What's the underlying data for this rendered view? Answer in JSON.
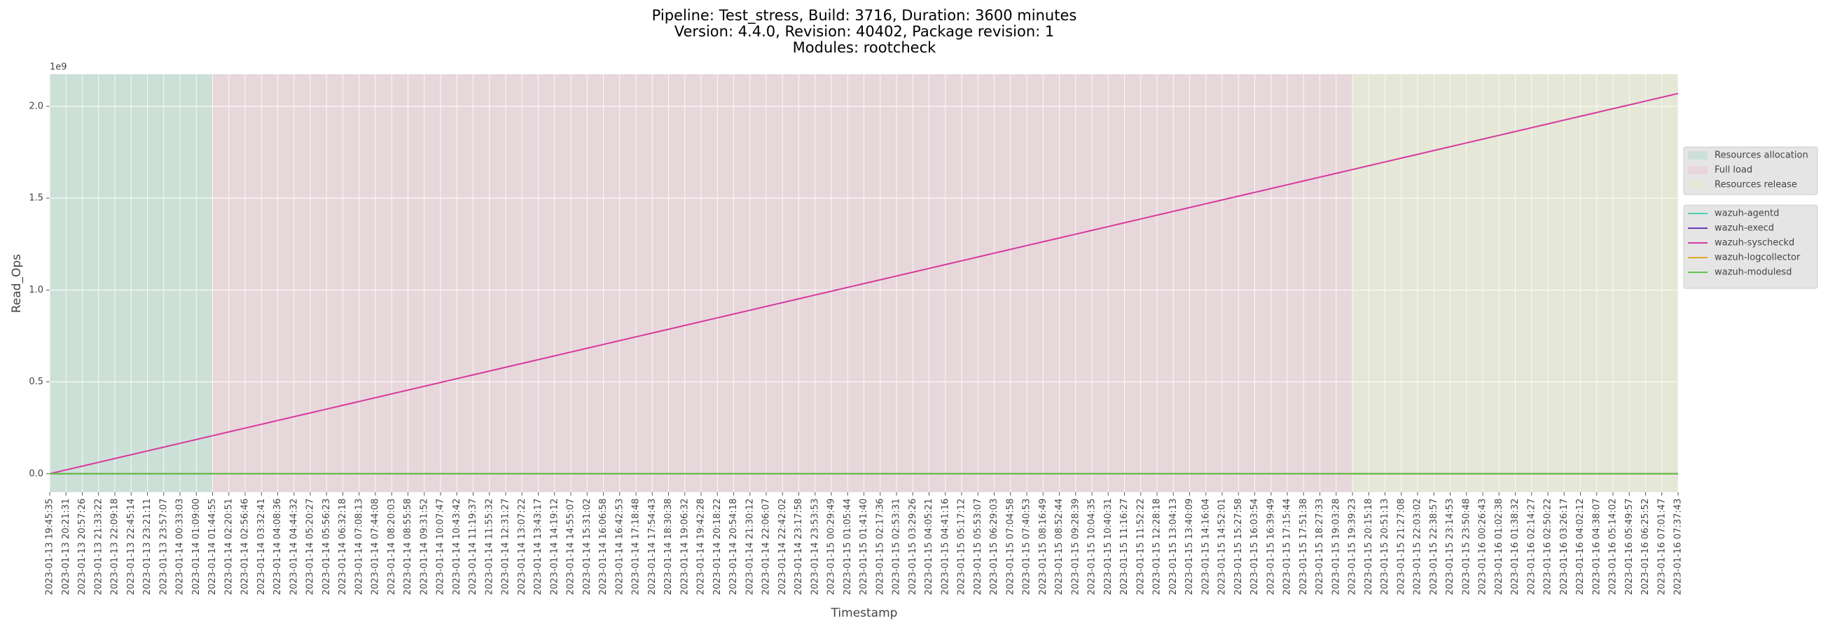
{
  "chart_data": {
    "type": "line",
    "title": [
      "Pipeline: Test_stress, Build: 3716, Duration: 3600 minutes",
      "Version: 4.4.0, Revision: 40402, Package revision: 1",
      "Modules: rootcheck"
    ],
    "x_label": "Timestamp",
    "y_label": "Read_Ops",
    "y_offset_label": "1e9",
    "categories": [
      "2023-01-13 19:45:35",
      "2023-01-13 20:21:31",
      "2023-01-13 20:57:26",
      "2023-01-13 21:33:22",
      "2023-01-13 22:09:18",
      "2023-01-13 22:45:14",
      "2023-01-13 23:21:11",
      "2023-01-13 23:57:07",
      "2023-01-14 00:33:03",
      "2023-01-14 01:09:00",
      "2023-01-14 01:44:55",
      "2023-01-14 02:20:51",
      "2023-01-14 02:56:46",
      "2023-01-14 03:32:41",
      "2023-01-14 04:08:36",
      "2023-01-14 04:44:32",
      "2023-01-14 05:20:27",
      "2023-01-14 05:56:23",
      "2023-01-14 06:32:18",
      "2023-01-14 07:08:13",
      "2023-01-14 07:44:08",
      "2023-01-14 08:20:03",
      "2023-01-14 08:55:58",
      "2023-01-14 09:31:52",
      "2023-01-14 10:07:47",
      "2023-01-14 10:43:42",
      "2023-01-14 11:19:37",
      "2023-01-14 11:55:32",
      "2023-01-14 12:31:27",
      "2023-01-14 13:07:22",
      "2023-01-14 13:43:17",
      "2023-01-14 14:19:12",
      "2023-01-14 14:55:07",
      "2023-01-14 15:31:02",
      "2023-01-14 16:06:58",
      "2023-01-14 16:42:53",
      "2023-01-14 17:18:48",
      "2023-01-14 17:54:43",
      "2023-01-14 18:30:38",
      "2023-01-14 19:06:32",
      "2023-01-14 19:42:28",
      "2023-01-14 20:18:22",
      "2023-01-14 20:54:18",
      "2023-01-14 21:30:12",
      "2023-01-14 22:06:07",
      "2023-01-14 22:42:02",
      "2023-01-14 23:17:58",
      "2023-01-14 23:53:53",
      "2023-01-15 00:29:49",
      "2023-01-15 01:05:44",
      "2023-01-15 01:41:40",
      "2023-01-15 02:17:36",
      "2023-01-15 02:53:31",
      "2023-01-15 03:29:26",
      "2023-01-15 04:05:21",
      "2023-01-15 04:41:16",
      "2023-01-15 05:17:12",
      "2023-01-15 05:53:07",
      "2023-01-15 06:29:03",
      "2023-01-15 07:04:58",
      "2023-01-15 07:40:53",
      "2023-01-15 08:16:49",
      "2023-01-15 08:52:44",
      "2023-01-15 09:28:39",
      "2023-01-15 10:04:35",
      "2023-01-15 10:40:31",
      "2023-01-15 11:16:27",
      "2023-01-15 11:52:22",
      "2023-01-15 12:28:18",
      "2023-01-15 13:04:13",
      "2023-01-15 13:40:09",
      "2023-01-15 14:16:04",
      "2023-01-15 14:52:01",
      "2023-01-15 15:27:58",
      "2023-01-15 16:03:54",
      "2023-01-15 16:39:49",
      "2023-01-15 17:15:44",
      "2023-01-15 17:51:38",
      "2023-01-15 18:27:33",
      "2023-01-15 19:03:28",
      "2023-01-15 19:39:23",
      "2023-01-15 20:15:18",
      "2023-01-15 20:51:13",
      "2023-01-15 21:27:08",
      "2023-01-15 22:03:02",
      "2023-01-15 22:38:57",
      "2023-01-15 23:14:53",
      "2023-01-15 23:50:48",
      "2023-01-16 00:26:43",
      "2023-01-16 01:02:38",
      "2023-01-16 01:38:32",
      "2023-01-16 02:14:27",
      "2023-01-16 02:50:22",
      "2023-01-16 03:26:17",
      "2023-01-16 04:02:12",
      "2023-01-16 04:38:07",
      "2023-01-16 05:14:02",
      "2023-01-16 05:49:57",
      "2023-01-16 06:25:52",
      "2023-01-16 07:01:47",
      "2023-01-16 07:37:43"
    ],
    "series": [
      {
        "name": "wazuh-agentd",
        "color": "#4fcfb6",
        "values": [
          0,
          0,
          0,
          0,
          0,
          0,
          0,
          0,
          0,
          0,
          0,
          0,
          0,
          0,
          0,
          0,
          0,
          0,
          0,
          0,
          0,
          0,
          0,
          0,
          0,
          0,
          0,
          0,
          0,
          0,
          0,
          0,
          0,
          0,
          0,
          0,
          0,
          0,
          0,
          0,
          0,
          0,
          0,
          0,
          0,
          0,
          0,
          0,
          0,
          0,
          0,
          0,
          0,
          0,
          0,
          0,
          0,
          0,
          0,
          0,
          0,
          0,
          0,
          0,
          0,
          0,
          0,
          0,
          0,
          0,
          0,
          0,
          0,
          0,
          0,
          0,
          0,
          0,
          0,
          0,
          0,
          0,
          0,
          0,
          0,
          0,
          0,
          0,
          0,
          0,
          0,
          0,
          0,
          0,
          0,
          0,
          0,
          0,
          0,
          0,
          0
        ]
      },
      {
        "name": "wazuh-execd",
        "color": "#6a3db8",
        "values": [
          0,
          0,
          0,
          0,
          0,
          0,
          0,
          0,
          0,
          0,
          0,
          0,
          0,
          0,
          0,
          0,
          0,
          0,
          0,
          0,
          0,
          0,
          0,
          0,
          0,
          0,
          0,
          0,
          0,
          0,
          0,
          0,
          0,
          0,
          0,
          0,
          0,
          0,
          0,
          0,
          0,
          0,
          0,
          0,
          0,
          0,
          0,
          0,
          0,
          0,
          0,
          0,
          0,
          0,
          0,
          0,
          0,
          0,
          0,
          0,
          0,
          0,
          0,
          0,
          0,
          0,
          0,
          0,
          0,
          0,
          0,
          0,
          0,
          0,
          0,
          0,
          0,
          0,
          0,
          0,
          0,
          0,
          0,
          0,
          0,
          0,
          0,
          0,
          0,
          0,
          0,
          0,
          0,
          0,
          0,
          0,
          0,
          0,
          0,
          0,
          0
        ]
      },
      {
        "name": "wazuh-syscheckd",
        "color": "#d6399e",
        "values": [
          0,
          0.0207,
          0.0414,
          0.0621,
          0.0828,
          0.1035,
          0.1242,
          0.1449,
          0.1656,
          0.1863,
          0.207,
          0.2277,
          0.2484,
          0.2691,
          0.2898,
          0.3105,
          0.3312,
          0.3519,
          0.3726,
          0.3933,
          0.414,
          0.4347,
          0.4554,
          0.4761,
          0.4968,
          0.5175,
          0.5382,
          0.5589,
          0.5796,
          0.6003,
          0.621,
          0.6417,
          0.6624,
          0.6831,
          0.7038,
          0.7245,
          0.7452,
          0.7659,
          0.7866,
          0.8073,
          0.828,
          0.8487,
          0.8694,
          0.8901,
          0.9108,
          0.9315,
          0.9522,
          0.9729,
          0.9936,
          1.0143,
          1.035,
          1.0557,
          1.0764,
          1.0971,
          1.1178,
          1.1385,
          1.1592,
          1.1799,
          1.2006,
          1.2213,
          1.242,
          1.2627,
          1.2834,
          1.3041,
          1.3248,
          1.3455,
          1.3662,
          1.3869,
          1.4076,
          1.4283,
          1.449,
          1.4697,
          1.4904,
          1.5111,
          1.5318,
          1.5525,
          1.5732,
          1.5939,
          1.6146,
          1.6353,
          1.656,
          1.6767,
          1.6974,
          1.7181,
          1.7388,
          1.7595,
          1.7802,
          1.8009,
          1.8216,
          1.8423,
          1.863,
          1.8837,
          1.9044,
          1.9251,
          1.9458,
          1.9665,
          1.9872,
          2.0079,
          2.0286,
          2.0493,
          2.07
        ]
      },
      {
        "name": "wazuh-logcollector",
        "color": "#e3a228",
        "values": [
          0,
          0,
          0,
          0,
          0,
          0,
          0,
          0,
          0,
          0,
          0,
          0,
          0,
          0,
          0,
          0,
          0,
          0,
          0,
          0,
          0,
          0,
          0,
          0,
          0,
          0,
          0,
          0,
          0,
          0,
          0,
          0,
          0,
          0,
          0,
          0,
          0,
          0,
          0,
          0,
          0,
          0,
          0,
          0,
          0,
          0,
          0,
          0,
          0,
          0,
          0,
          0,
          0,
          0,
          0,
          0,
          0,
          0,
          0,
          0,
          0,
          0,
          0,
          0,
          0,
          0,
          0,
          0,
          0,
          0,
          0,
          0,
          0,
          0,
          0,
          0,
          0,
          0,
          0,
          0,
          0,
          0,
          0,
          0,
          0,
          0,
          0,
          0,
          0,
          0,
          0,
          0,
          0,
          0,
          0,
          0,
          0,
          0,
          0,
          0,
          0
        ]
      },
      {
        "name": "wazuh-modulesd",
        "color": "#62c44c",
        "values": [
          0,
          0,
          0,
          0,
          0,
          0,
          0,
          0,
          0,
          0,
          0,
          0,
          0,
          0,
          0,
          0,
          0,
          0,
          0,
          0,
          0,
          0,
          0,
          0,
          0,
          0,
          0,
          0,
          0,
          0,
          0,
          0,
          0,
          0,
          0,
          0,
          0,
          0,
          0,
          0,
          0,
          0,
          0,
          0,
          0,
          0,
          0,
          0,
          0,
          0,
          0,
          0,
          0,
          0,
          0,
          0,
          0,
          0,
          0,
          0,
          0,
          0,
          0,
          0,
          0,
          0,
          0,
          0,
          0,
          0,
          0,
          0,
          0,
          0,
          0,
          0,
          0,
          0,
          0,
          0,
          0,
          0,
          0,
          0,
          0,
          0,
          0,
          0,
          0,
          0,
          0,
          0,
          0,
          0,
          0,
          0,
          0,
          0,
          0,
          0,
          0
        ]
      }
    ],
    "regions": [
      {
        "name": "Resources allocation",
        "start": "2023-01-13 19:45:35",
        "end": "2023-01-14 01:44:55",
        "color": "rgba(160,215,190,0.35)"
      },
      {
        "name": "Full load",
        "start": "2023-01-14 01:44:55",
        "end": "2023-01-15 19:39:23",
        "color": "rgba(235,190,200,0.35)"
      },
      {
        "name": "Resources release",
        "start": "2023-01-15 19:39:23",
        "end": "2023-01-16 07:37:43",
        "color": "rgba(230,235,190,0.35)"
      }
    ],
    "ylim": [
      -0.1,
      2.175
    ],
    "yticks": [
      {
        "value": 0,
        "label": "0.0"
      },
      0.5,
      {
        "value": 1,
        "label": "1.0"
      },
      1.5,
      {
        "value": 2,
        "label": "2.0"
      }
    ],
    "grid": true,
    "legend": "right"
  }
}
